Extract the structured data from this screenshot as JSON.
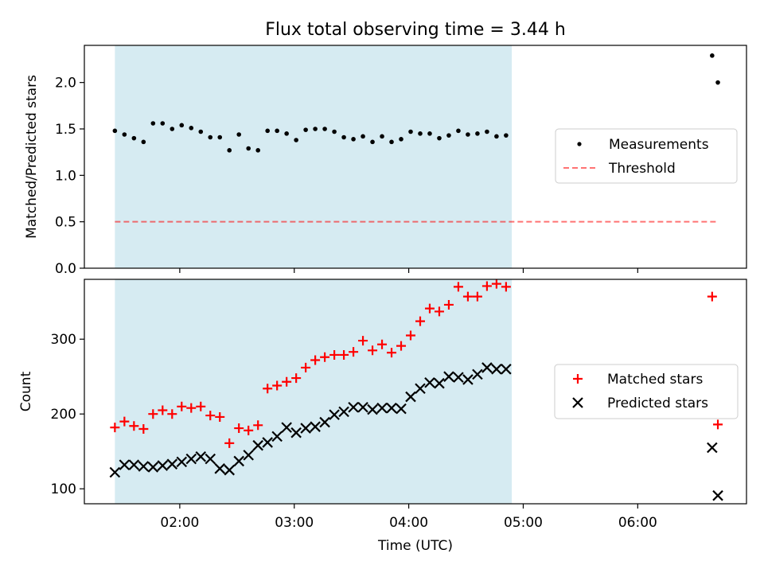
{
  "title": "Flux total observing time = 3.44 h",
  "xlabel": "Time (UTC)",
  "colors": {
    "shade": "#add8e6",
    "threshold": "#ff0000",
    "matched": "#ff0000",
    "predicted": "#000000",
    "measurement": "#000000"
  },
  "chart_data": [
    {
      "type": "scatter",
      "ylabel": "Matched/Predicted stars",
      "ylim": [
        0,
        2.4
      ],
      "yticks": [
        "0.0",
        "0.5",
        "1.0",
        "1.5",
        "2.0"
      ],
      "shaded_interval": [
        "01:26",
        "04:54"
      ],
      "legend": {
        "placement": "center-right",
        "entries": [
          "Measurements",
          "Threshold"
        ]
      },
      "series": [
        {
          "name": "Measurements",
          "marker": "dot",
          "x": [
            "01:26",
            "01:31",
            "01:36",
            "01:41",
            "01:46",
            "01:51",
            "01:56",
            "02:01",
            "02:06",
            "02:11",
            "02:16",
            "02:21",
            "02:26",
            "02:31",
            "02:36",
            "02:41",
            "02:46",
            "02:51",
            "02:56",
            "03:01",
            "03:06",
            "03:11",
            "03:16",
            "03:21",
            "03:26",
            "03:31",
            "03:36",
            "03:41",
            "03:46",
            "03:51",
            "03:56",
            "04:01",
            "04:06",
            "04:11",
            "04:16",
            "04:21",
            "04:26",
            "04:31",
            "04:36",
            "04:41",
            "04:46",
            "04:51",
            "06:39",
            "06:42"
          ],
          "values": [
            1.48,
            1.44,
            1.4,
            1.36,
            1.56,
            1.56,
            1.5,
            1.54,
            1.51,
            1.47,
            1.41,
            1.41,
            1.27,
            1.44,
            1.29,
            1.27,
            1.48,
            1.48,
            1.45,
            1.38,
            1.49,
            1.5,
            1.5,
            1.47,
            1.41,
            1.39,
            1.42,
            1.36,
            1.42,
            1.36,
            1.39,
            1.47,
            1.45,
            1.45,
            1.4,
            1.43,
            1.48,
            1.44,
            1.45,
            1.47,
            1.42,
            1.43,
            2.29,
            2.0
          ]
        },
        {
          "name": "Threshold",
          "style": "dashed",
          "x": [
            "01:26",
            "06:42"
          ],
          "values": [
            0.5,
            0.5
          ]
        }
      ]
    },
    {
      "type": "scatter",
      "ylabel": "Count",
      "ylim": [
        80,
        380
      ],
      "yticks": [
        "100",
        "200",
        "300"
      ],
      "xticks": [
        "02:00",
        "03:00",
        "04:00",
        "05:00",
        "06:00"
      ],
      "shaded_interval": [
        "01:26",
        "04:54"
      ],
      "legend": {
        "placement": "center-right",
        "entries": [
          "Matched stars",
          "Predicted stars"
        ]
      },
      "series": [
        {
          "name": "Matched stars",
          "marker": "plus",
          "x": [
            "01:26",
            "01:31",
            "01:36",
            "01:41",
            "01:46",
            "01:51",
            "01:56",
            "02:01",
            "02:06",
            "02:11",
            "02:16",
            "02:21",
            "02:26",
            "02:31",
            "02:36",
            "02:41",
            "02:46",
            "02:51",
            "02:56",
            "03:01",
            "03:06",
            "03:11",
            "03:16",
            "03:21",
            "03:26",
            "03:31",
            "03:36",
            "03:41",
            "03:46",
            "03:51",
            "03:56",
            "04:01",
            "04:06",
            "04:11",
            "04:16",
            "04:21",
            "04:26",
            "04:31",
            "04:36",
            "04:41",
            "04:46",
            "04:51",
            "06:39",
            "06:42"
          ],
          "values": [
            182,
            190,
            184,
            180,
            200,
            205,
            200,
            210,
            208,
            210,
            198,
            196,
            161,
            181,
            178,
            185,
            234,
            238,
            243,
            248,
            262,
            272,
            276,
            279,
            279,
            283,
            298,
            285,
            293,
            282,
            291,
            305,
            324,
            341,
            337,
            346,
            370,
            357,
            357,
            371,
            374,
            370,
            357,
            186
          ]
        },
        {
          "name": "Predicted stars",
          "marker": "x",
          "x": [
            "01:26",
            "01:31",
            "01:36",
            "01:41",
            "01:46",
            "01:51",
            "01:56",
            "02:01",
            "02:06",
            "02:11",
            "02:16",
            "02:21",
            "02:26",
            "02:31",
            "02:36",
            "02:41",
            "02:46",
            "02:51",
            "02:56",
            "03:01",
            "03:06",
            "03:11",
            "03:16",
            "03:21",
            "03:26",
            "03:31",
            "03:36",
            "03:41",
            "03:46",
            "03:51",
            "03:56",
            "04:01",
            "04:06",
            "04:11",
            "04:16",
            "04:21",
            "04:26",
            "04:31",
            "04:36",
            "04:41",
            "04:46",
            "04:51",
            "06:39",
            "06:42"
          ],
          "values": [
            122,
            132,
            132,
            130,
            129,
            131,
            133,
            136,
            140,
            143,
            140,
            127,
            125,
            137,
            145,
            158,
            162,
            170,
            182,
            175,
            181,
            183,
            189,
            199,
            203,
            209,
            209,
            206,
            208,
            208,
            207,
            223,
            234,
            242,
            241,
            250,
            249,
            246,
            253,
            262,
            260,
            260,
            155,
            91
          ]
        }
      ]
    }
  ]
}
